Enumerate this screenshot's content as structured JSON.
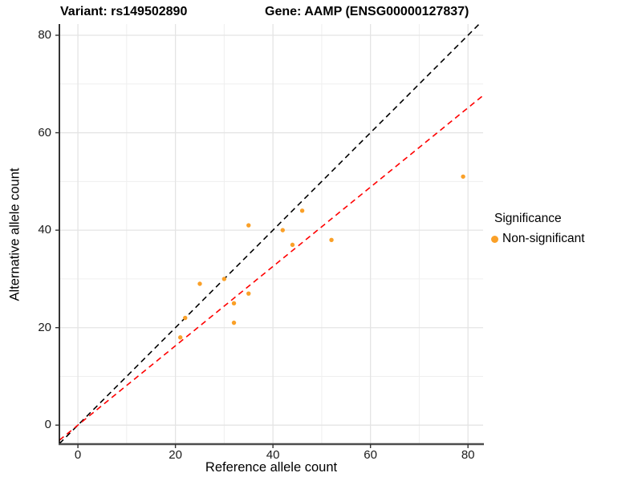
{
  "titles": {
    "variant": "Variant: rs149502890",
    "gene": "Gene: AAMP (ENSG00000127837)"
  },
  "legend": {
    "title": "Significance",
    "items": [
      {
        "label": "Non-significant",
        "color": "#FAA028",
        "icon": "legend-point-icon"
      }
    ]
  },
  "chart_data": {
    "type": "scatter",
    "title": "Variant: rs149502890 | Gene: AAMP (ENSG00000127837)",
    "xlabel": "Reference allele count",
    "ylabel": "Alternative allele count",
    "xlim": [
      -3.8,
      83.1
    ],
    "ylim": [
      -3.9,
      82.3
    ],
    "x_ticks": [
      0,
      20,
      40,
      60,
      80
    ],
    "y_ticks": [
      0,
      20,
      40,
      60,
      80
    ],
    "minor_ticks": [
      10,
      30,
      50,
      70
    ],
    "grid": true,
    "legend_position": "right",
    "series": [
      {
        "name": "Non-significant",
        "color": "#FAA028",
        "points": [
          {
            "x": 21,
            "y": 18
          },
          {
            "x": 22,
            "y": 22
          },
          {
            "x": 25,
            "y": 29
          },
          {
            "x": 30,
            "y": 30
          },
          {
            "x": 32,
            "y": 21
          },
          {
            "x": 32,
            "y": 25
          },
          {
            "x": 35,
            "y": 27
          },
          {
            "x": 35,
            "y": 41
          },
          {
            "x": 42,
            "y": 40
          },
          {
            "x": 44,
            "y": 37
          },
          {
            "x": 46,
            "y": 44
          },
          {
            "x": 52,
            "y": 38
          },
          {
            "x": 79,
            "y": 51
          }
        ]
      }
    ],
    "lines": [
      {
        "name": "identity-line",
        "slope": 1.0,
        "intercept": 0,
        "color": "#000000",
        "style": "dashed"
      },
      {
        "name": "regression-line",
        "slope": 0.814,
        "intercept": 0,
        "color": "#FF0000",
        "style": "dashed"
      }
    ],
    "colors": {
      "point": "#FAA028",
      "grid_major": "#E4E4E4",
      "grid_minor": "#EFEFEF",
      "axis_line_y": "#000000",
      "axis_line_x": "#4D4D4D",
      "background": "#FFFFFF"
    }
  }
}
